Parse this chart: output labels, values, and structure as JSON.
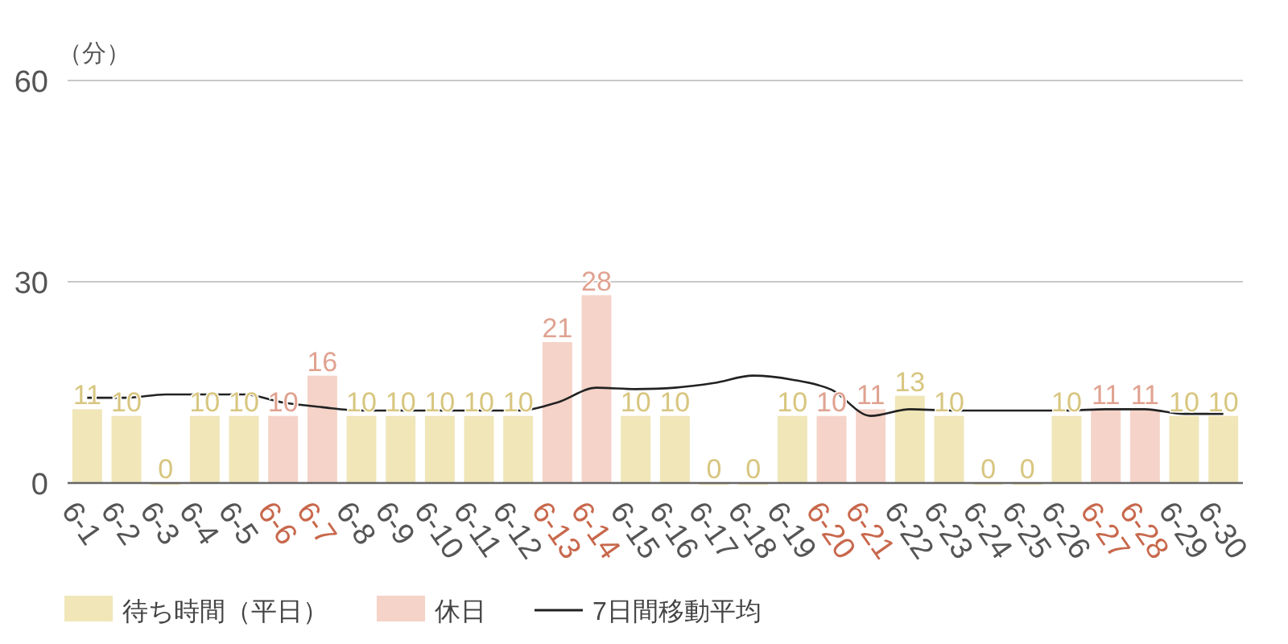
{
  "chart_data": {
    "type": "bar",
    "ylabel": "（分）",
    "categories": [
      "6-1",
      "6-2",
      "6-3",
      "6-4",
      "6-5",
      "6-6",
      "6-7",
      "6-8",
      "6-9",
      "6-10",
      "6-11",
      "6-12",
      "6-13",
      "6-14",
      "6-15",
      "6-16",
      "6-17",
      "6-18",
      "6-19",
      "6-20",
      "6-21",
      "6-22",
      "6-23",
      "6-24",
      "6-25",
      "6-26",
      "6-27",
      "6-28",
      "6-29",
      "6-30"
    ],
    "series": [
      {
        "name": "待ち時間（平日）",
        "color": "#f0e6b8",
        "values": [
          11,
          10,
          0,
          10,
          10,
          null,
          null,
          10,
          10,
          10,
          10,
          10,
          null,
          null,
          10,
          10,
          0,
          0,
          10,
          null,
          null,
          13,
          10,
          0,
          0,
          10,
          null,
          null,
          10,
          10
        ],
        "value_labels": [
          "11",
          "10",
          "0",
          "10",
          "10",
          null,
          null,
          "10",
          "10",
          "10",
          "10",
          "10",
          null,
          null,
          "10",
          "10",
          "0",
          "0",
          "10",
          null,
          null,
          "13",
          "10",
          "0",
          "0",
          "10",
          null,
          null,
          "10",
          "10"
        ]
      },
      {
        "name": "休日",
        "color": "#f5d3c8",
        "values": [
          null,
          null,
          null,
          null,
          null,
          10,
          16,
          null,
          null,
          null,
          null,
          null,
          21,
          28,
          null,
          null,
          null,
          null,
          null,
          10,
          11,
          null,
          null,
          null,
          null,
          null,
          11,
          11,
          null,
          null
        ],
        "value_labels": [
          null,
          null,
          null,
          null,
          null,
          "10",
          "16",
          null,
          null,
          null,
          null,
          null,
          "21",
          "28",
          null,
          null,
          null,
          null,
          null,
          "10",
          "11",
          null,
          null,
          null,
          null,
          null,
          "11",
          "11",
          null,
          null
        ]
      },
      {
        "name": "7日間移動平均",
        "type": "line",
        "color": "#222222",
        "values": [
          12.7,
          12.7,
          13.2,
          13.2,
          13.2,
          12,
          11.3,
          10.8,
          10.8,
          10.8,
          10.8,
          10.8,
          12,
          14.2,
          14,
          14.2,
          14.9,
          16,
          15.4,
          13.9,
          10,
          11,
          10.8,
          10.8,
          10.8,
          10.8,
          11,
          11,
          10.3,
          10.3
        ]
      }
    ],
    "ylim": [
      0,
      60
    ],
    "yticks": [
      0,
      30,
      60
    ],
    "grid": "y",
    "legend": "bottom left"
  }
}
